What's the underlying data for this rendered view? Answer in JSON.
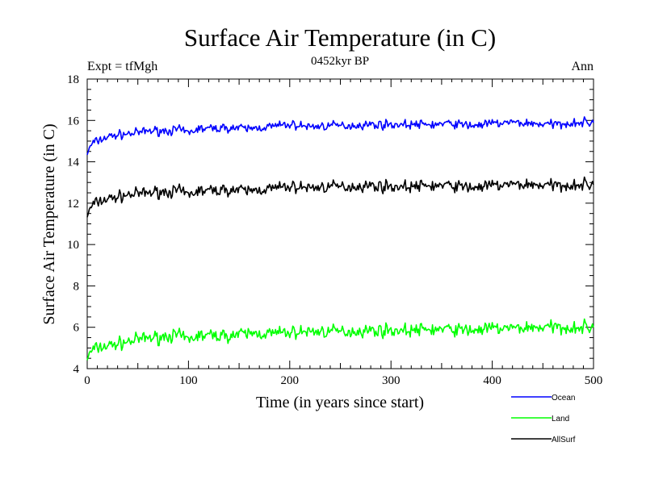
{
  "chart_data": {
    "type": "line",
    "title": "Surface Air Temperature (in C)",
    "subtitle": "0452kyr BP",
    "left_note": "Expt = tfMgh",
    "right_note": "Ann",
    "xlabel": "Time (in years since start)",
    "ylabel": "Surface Air Temperature (in C)",
    "xlim": [
      0,
      500
    ],
    "ylim": [
      4,
      18
    ],
    "x_ticks": [
      "0",
      "100",
      "200",
      "300",
      "400",
      "500"
    ],
    "y_ticks": [
      "4",
      "6",
      "8",
      "10",
      "12",
      "14",
      "16",
      "18"
    ],
    "grid": false,
    "legend_position": "bottom-right, below plot",
    "x": [
      0,
      5,
      10,
      20,
      30,
      40,
      50,
      60,
      70,
      80,
      90,
      100,
      110,
      120,
      140,
      160,
      180,
      200,
      220,
      240,
      260,
      280,
      300,
      320,
      340,
      360,
      380,
      400,
      420,
      440,
      460,
      480,
      500
    ],
    "series": [
      {
        "name": "Ocean",
        "color": "#0000ff",
        "values": [
          14.4,
          14.9,
          15.0,
          15.2,
          15.3,
          15.35,
          15.4,
          15.5,
          15.5,
          15.5,
          15.55,
          15.4,
          15.6,
          15.6,
          15.65,
          15.6,
          15.7,
          15.8,
          15.7,
          15.75,
          15.75,
          15.8,
          15.8,
          15.8,
          15.8,
          15.85,
          15.75,
          15.85,
          15.9,
          15.85,
          15.8,
          15.9,
          15.9
        ]
      },
      {
        "name": "Land",
        "color": "#00ff00",
        "values": [
          4.5,
          4.9,
          5.0,
          5.1,
          5.2,
          5.3,
          5.4,
          5.5,
          5.5,
          5.6,
          5.6,
          5.4,
          5.6,
          5.6,
          5.6,
          5.7,
          5.7,
          5.75,
          5.8,
          5.8,
          5.8,
          5.85,
          5.85,
          5.85,
          5.9,
          5.9,
          5.85,
          5.95,
          5.95,
          6.0,
          6.0,
          6.0,
          6.0
        ]
      },
      {
        "name": "AllSurf",
        "color": "#000000",
        "values": [
          11.4,
          11.9,
          12.05,
          12.2,
          12.3,
          12.4,
          12.45,
          12.5,
          12.55,
          12.55,
          12.6,
          12.4,
          12.6,
          12.6,
          12.65,
          12.6,
          12.7,
          12.8,
          12.75,
          12.8,
          12.8,
          12.85,
          12.8,
          12.8,
          12.85,
          12.85,
          12.75,
          12.85,
          12.9,
          12.9,
          12.85,
          12.9,
          12.9
        ]
      }
    ]
  }
}
